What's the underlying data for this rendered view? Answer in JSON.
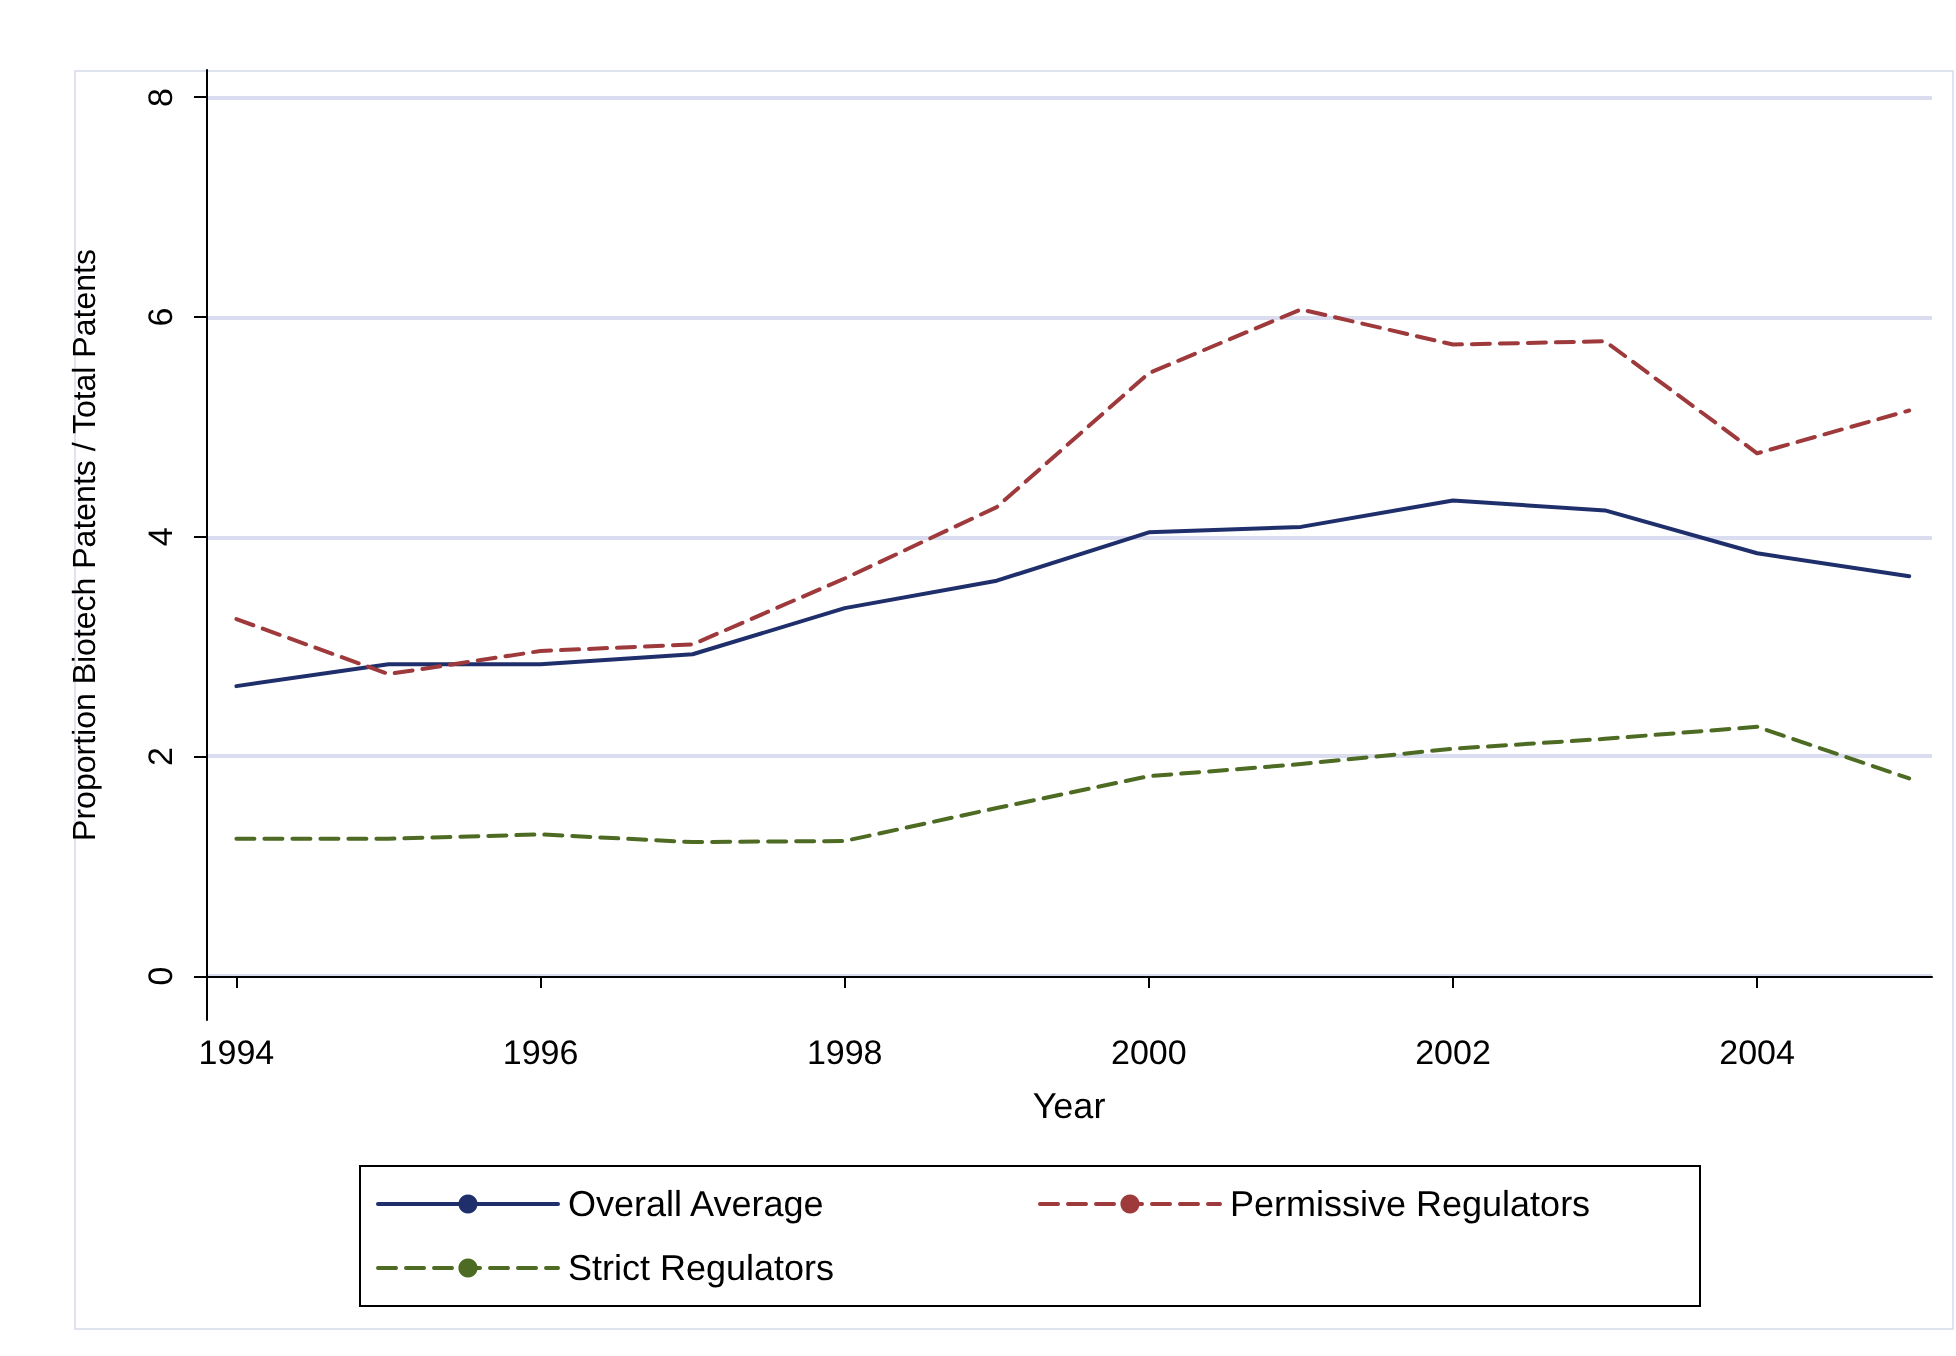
{
  "chart_data": {
    "type": "line",
    "xlabel": "Year",
    "ylabel": "Proportion Biotech Patents / Total Patents",
    "x": [
      1994,
      1995,
      1996,
      1997,
      1998,
      1999,
      2000,
      2001,
      2002,
      2003,
      2004,
      2005
    ],
    "series": [
      {
        "name": "Overall Average",
        "color": "#1f2f6b",
        "line_style": "solid",
        "values": [
          2.64,
          2.84,
          2.84,
          2.93,
          3.35,
          3.6,
          4.04,
          4.09,
          4.33,
          4.24,
          3.85,
          3.64
        ]
      },
      {
        "name": "Permissive Regulators",
        "color": "#9e3a3c",
        "line_style": "dashed",
        "values": [
          3.25,
          2.75,
          2.96,
          3.02,
          3.62,
          4.27,
          5.49,
          6.07,
          5.75,
          5.78,
          4.76,
          5.15
        ]
      },
      {
        "name": "Strict Regulators",
        "color": "#4d6b22",
        "line_style": "dashed",
        "values": [
          1.25,
          1.25,
          1.29,
          1.22,
          1.23,
          1.53,
          1.82,
          1.93,
          2.07,
          2.16,
          2.27,
          1.8
        ]
      }
    ],
    "xlim": [
      1993.8,
      2005.15
    ],
    "xticks": [
      1994,
      1996,
      1998,
      2000,
      2002,
      2004
    ],
    "ylim": [
      -0.4,
      8.25
    ],
    "yticks": [
      0,
      2,
      4,
      6,
      8
    ],
    "grid": "y",
    "legend": "bottom",
    "marker": "none"
  }
}
